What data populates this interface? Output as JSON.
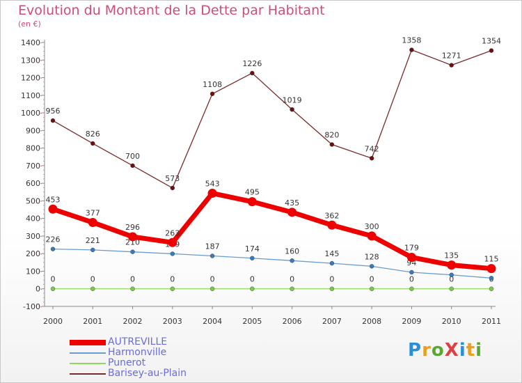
{
  "title": "Evolution du Montant de la Dette par Habitant",
  "subtitle": "(en €)",
  "logo": {
    "text": "ProXiti",
    "colors": [
      "#2a8fd8",
      "#e8a020",
      "#5aa830",
      "#e04040",
      "#2a8fd8",
      "#e8a020",
      "#5aa830"
    ]
  },
  "chart_data": {
    "type": "line",
    "title": "Evolution du Montant de la Dette par Habitant",
    "subtitle": "(en €)",
    "x": [
      "2000",
      "2001",
      "2002",
      "2003",
      "2004",
      "2005",
      "2006",
      "2007",
      "2008",
      "2009",
      "2010",
      "2011"
    ],
    "ylim": [
      -100,
      1400
    ],
    "yticks": [
      -100,
      0,
      100,
      200,
      300,
      400,
      500,
      600,
      700,
      800,
      900,
      1000,
      1100,
      1200,
      1300,
      1400
    ],
    "grid": false,
    "legend": "bottom-left",
    "series": [
      {
        "name": "Barisey-au-Plain",
        "color": "#7a2a2a",
        "marker": "#6a1010",
        "values": [
          956,
          826,
          700,
          573,
          1108,
          1226,
          1019,
          820,
          742,
          1358,
          1271,
          1354
        ],
        "labels": [
          "956",
          "826",
          "700",
          "573",
          "1108",
          "1226",
          "1019",
          "820",
          "742",
          "1358",
          "1271",
          "1354"
        ]
      },
      {
        "name": "Punerot",
        "color": "#8ed85a",
        "marker": "#7ac850",
        "values": [
          0,
          0,
          0,
          0,
          0,
          0,
          0,
          0,
          0,
          0,
          0,
          0
        ],
        "labels": [
          "0",
          "0",
          "0",
          "0",
          "0",
          "0",
          "0",
          "0",
          "0",
          "0",
          "0",
          "0"
        ]
      },
      {
        "name": "Harmonville",
        "color": "#6a9cd0",
        "marker": "#3a7ab8",
        "values": [
          226,
          221,
          210,
          199,
          187,
          174,
          160,
          145,
          128,
          94,
          79,
          61
        ],
        "labels": [
          "226",
          "221",
          "210",
          "199",
          "187",
          "174",
          "160",
          "145",
          "128",
          "94",
          "79",
          "61"
        ]
      },
      {
        "name": "AUTREVILLE",
        "color": "#ee0000",
        "marker": "#ee0000",
        "values": [
          453,
          377,
          296,
          263,
          543,
          495,
          435,
          362,
          300,
          179,
          135,
          115
        ],
        "labels": [
          "453",
          "377",
          "296",
          "263",
          "543",
          "495",
          "435",
          "362",
          "300",
          "179",
          "135",
          "115"
        ]
      }
    ]
  },
  "legend_items": [
    {
      "label": "AUTREVILLE",
      "color": "#ee0000"
    },
    {
      "label": "Harmonville",
      "color": "#6a9cd0"
    },
    {
      "label": "Punerot",
      "color": "#8ed85a"
    },
    {
      "label": "Barisey-au-Plain",
      "color": "#7a2a2a"
    }
  ]
}
